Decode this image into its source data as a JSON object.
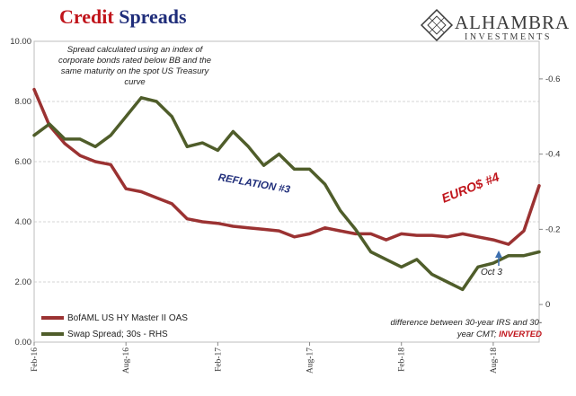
{
  "title": {
    "word1": "Credit",
    "word2": "Spreads"
  },
  "brand": {
    "name": "ALHAMBRA",
    "sub": "INVESTMENTS"
  },
  "note_top": "Spread calculated using an index of corporate bonds rated below BB and the same maturity on the spot US Treasury curve",
  "annotations": {
    "reflation": "REFLATION #3",
    "euro": "EURO$ #4",
    "oct": "Oct 3",
    "bottom_note_main": "difference between 30-year IRS and 30-year CMT;",
    "bottom_note_inverted": "INVERTED"
  },
  "colors": {
    "series1": "#9b3232",
    "series2": "#4f5d2a",
    "title_red": "#c0141b",
    "title_blue": "#1f2d7a",
    "arrow": "#3d6fb0"
  },
  "chart_data": {
    "type": "line",
    "x_tick_labels": [
      "Feb-16",
      "Aug-16",
      "Feb-17",
      "Aug-17",
      "Feb-18",
      "Aug-18"
    ],
    "x_range": [
      "2016-02",
      "2018-11"
    ],
    "y_left": {
      "ticks": [
        "0.00",
        "2.00",
        "4.00",
        "6.00",
        "8.00",
        "10.00"
      ],
      "range": [
        0,
        10
      ]
    },
    "y_right": {
      "ticks": [
        "0",
        "-0.2",
        "-0.4",
        "-0.6"
      ],
      "range": [
        0.1,
        -0.7
      ]
    },
    "grid": true,
    "legend_position": "bottom-left",
    "series": [
      {
        "name": "BofAML US HY Master II OAS",
        "axis": "left",
        "x": [
          "2016-02",
          "2016-03",
          "2016-04",
          "2016-05",
          "2016-06",
          "2016-07",
          "2016-08",
          "2016-09",
          "2016-10",
          "2016-11",
          "2016-12",
          "2017-01",
          "2017-02",
          "2017-03",
          "2017-04",
          "2017-05",
          "2017-06",
          "2017-07",
          "2017-08",
          "2017-09",
          "2017-10",
          "2017-11",
          "2017-12",
          "2018-01",
          "2018-02",
          "2018-03",
          "2018-04",
          "2018-05",
          "2018-06",
          "2018-07",
          "2018-08",
          "2018-09",
          "2018-10",
          "2018-11"
        ],
        "values": [
          8.4,
          7.2,
          6.6,
          6.2,
          6.0,
          5.9,
          5.1,
          5.0,
          4.8,
          4.6,
          4.1,
          4.0,
          3.95,
          3.85,
          3.8,
          3.75,
          3.7,
          3.5,
          3.6,
          3.8,
          3.7,
          3.6,
          3.6,
          3.4,
          3.6,
          3.55,
          3.55,
          3.5,
          3.6,
          3.5,
          3.4,
          3.25,
          3.7,
          5.2
        ]
      },
      {
        "name": "Swap Spread; 30s - RHS",
        "axis": "right",
        "x": [
          "2016-02",
          "2016-03",
          "2016-04",
          "2016-05",
          "2016-06",
          "2016-07",
          "2016-08",
          "2016-09",
          "2016-10",
          "2016-11",
          "2016-12",
          "2017-01",
          "2017-02",
          "2017-03",
          "2017-04",
          "2017-05",
          "2017-06",
          "2017-07",
          "2017-08",
          "2017-09",
          "2017-10",
          "2017-11",
          "2017-12",
          "2018-01",
          "2018-02",
          "2018-03",
          "2018-04",
          "2018-05",
          "2018-06",
          "2018-07",
          "2018-08",
          "2018-09",
          "2018-10",
          "2018-11"
        ],
        "values": [
          -0.45,
          -0.48,
          -0.44,
          -0.44,
          -0.42,
          -0.45,
          -0.5,
          -0.55,
          -0.54,
          -0.5,
          -0.42,
          -0.43,
          -0.41,
          -0.46,
          -0.42,
          -0.37,
          -0.4,
          -0.36,
          -0.36,
          -0.32,
          -0.25,
          -0.2,
          -0.14,
          -0.12,
          -0.1,
          -0.12,
          -0.08,
          -0.06,
          -0.04,
          -0.1,
          -0.11,
          -0.13,
          -0.13,
          -0.14
        ]
      }
    ]
  }
}
